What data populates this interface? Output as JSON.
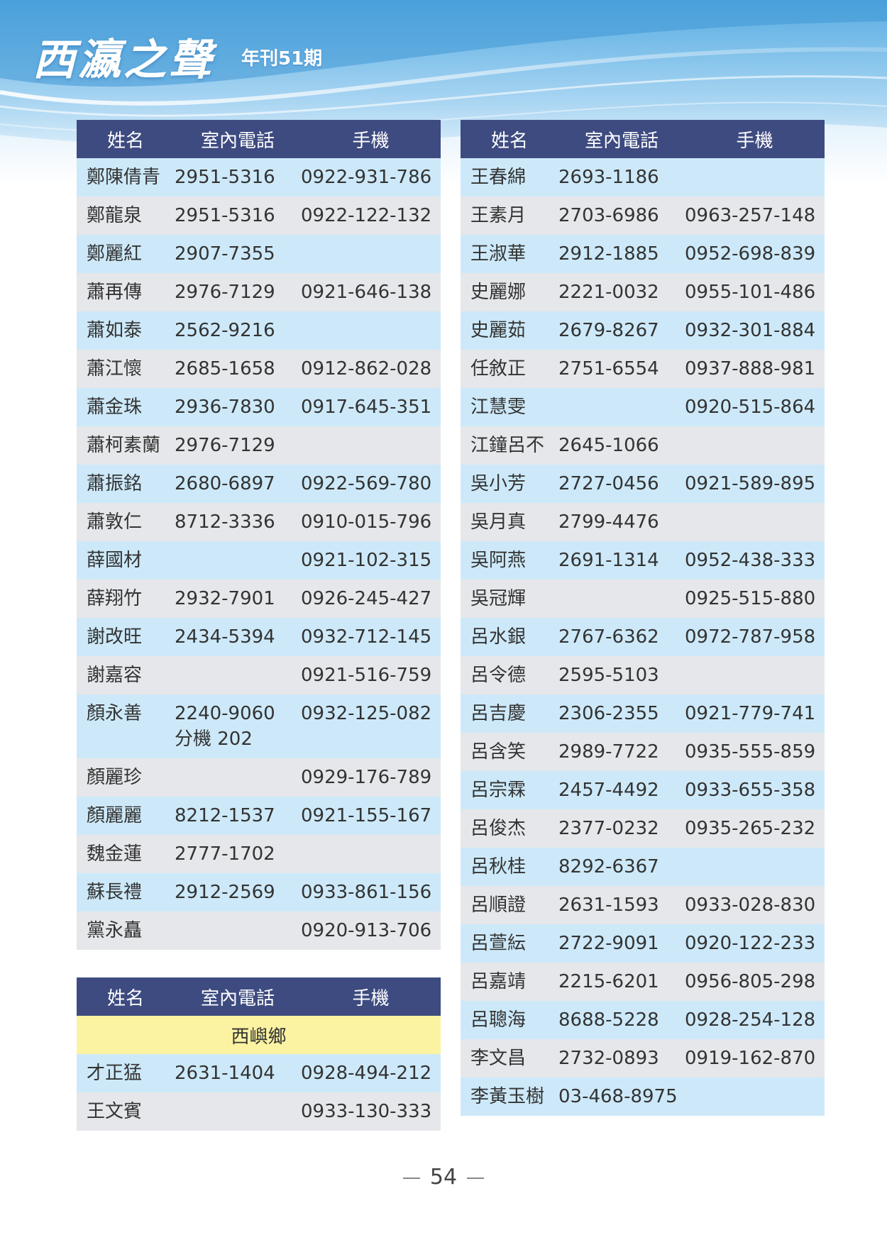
{
  "masthead": {
    "title": "西瀛之聲",
    "issue": "年刊51期"
  },
  "columns": {
    "name": "姓名",
    "home": "室內電話",
    "mobile": "手機"
  },
  "table_left": [
    {
      "name": "鄭陳倩青",
      "home": "2951-5316",
      "mobile": "0922-931-786"
    },
    {
      "name": "鄭龍泉",
      "home": "2951-5316",
      "mobile": "0922-122-132"
    },
    {
      "name": "鄭麗紅",
      "home": "2907-7355",
      "mobile": ""
    },
    {
      "name": "蕭再傳",
      "home": "2976-7129",
      "mobile": "0921-646-138"
    },
    {
      "name": "蕭如泰",
      "home": "2562-9216",
      "mobile": ""
    },
    {
      "name": "蕭江懷",
      "home": "2685-1658",
      "mobile": "0912-862-028"
    },
    {
      "name": "蕭金珠",
      "home": "2936-7830",
      "mobile": "0917-645-351"
    },
    {
      "name": "蕭柯素蘭",
      "home": "2976-7129",
      "mobile": ""
    },
    {
      "name": "蕭振銘",
      "home": "2680-6897",
      "mobile": "0922-569-780"
    },
    {
      "name": "蕭敦仁",
      "home": "8712-3336",
      "mobile": "0910-015-796"
    },
    {
      "name": "薛國材",
      "home": "",
      "mobile": "0921-102-315"
    },
    {
      "name": "薛翔竹",
      "home": "2932-7901",
      "mobile": "0926-245-427"
    },
    {
      "name": "謝改旺",
      "home": "2434-5394",
      "mobile": "0932-712-145"
    },
    {
      "name": "謝嘉容",
      "home": "",
      "mobile": "0921-516-759"
    },
    {
      "name": "顏永善",
      "home": "2240-9060\n分機 202",
      "mobile": "0932-125-082"
    },
    {
      "name": "顏麗珍",
      "home": "",
      "mobile": "0929-176-789"
    },
    {
      "name": "顏麗麗",
      "home": "8212-1537",
      "mobile": "0921-155-167"
    },
    {
      "name": "魏金蓮",
      "home": "2777-1702",
      "mobile": ""
    },
    {
      "name": "蘇長禮",
      "home": "2912-2569",
      "mobile": "0933-861-156"
    },
    {
      "name": "黨永矗",
      "home": "",
      "mobile": "0920-913-706"
    }
  ],
  "table_bottom": {
    "section": "西嶼鄉",
    "rows": [
      {
        "name": "才正猛",
        "home": "2631-1404",
        "mobile": "0928-494-212"
      },
      {
        "name": "王文賓",
        "home": "",
        "mobile": "0933-130-333"
      }
    ]
  },
  "table_right": [
    {
      "name": "王春綿",
      "home": "2693-1186",
      "mobile": ""
    },
    {
      "name": "王素月",
      "home": "2703-6986",
      "mobile": "0963-257-148"
    },
    {
      "name": "王淑華",
      "home": "2912-1885",
      "mobile": "0952-698-839"
    },
    {
      "name": "史麗娜",
      "home": "2221-0032",
      "mobile": "0955-101-486"
    },
    {
      "name": "史麗茹",
      "home": "2679-8267",
      "mobile": "0932-301-884"
    },
    {
      "name": "任敘正",
      "home": "2751-6554",
      "mobile": "0937-888-981"
    },
    {
      "name": "江慧雯",
      "home": "",
      "mobile": "0920-515-864"
    },
    {
      "name": "江鐘呂不",
      "home": "2645-1066",
      "mobile": ""
    },
    {
      "name": "吳小芳",
      "home": "2727-0456",
      "mobile": "0921-589-895"
    },
    {
      "name": "吳月真",
      "home": "2799-4476",
      "mobile": ""
    },
    {
      "name": "吳阿燕",
      "home": "2691-1314",
      "mobile": "0952-438-333"
    },
    {
      "name": "吳冠輝",
      "home": "",
      "mobile": "0925-515-880"
    },
    {
      "name": "呂水銀",
      "home": "2767-6362",
      "mobile": "0972-787-958"
    },
    {
      "name": "呂令德",
      "home": "2595-5103",
      "mobile": ""
    },
    {
      "name": "呂吉慶",
      "home": "2306-2355",
      "mobile": "0921-779-741"
    },
    {
      "name": "呂含笑",
      "home": "2989-7722",
      "mobile": "0935-555-859"
    },
    {
      "name": "呂宗霖",
      "home": "2457-4492",
      "mobile": "0933-655-358"
    },
    {
      "name": "呂俊杰",
      "home": "2377-0232",
      "mobile": "0935-265-232"
    },
    {
      "name": "呂秋桂",
      "home": "8292-6367",
      "mobile": ""
    },
    {
      "name": "呂順證",
      "home": "2631-1593",
      "mobile": "0933-028-830"
    },
    {
      "name": "呂萱紜",
      "home": "2722-9091",
      "mobile": "0920-122-233"
    },
    {
      "name": "呂嘉靖",
      "home": "2215-6201",
      "mobile": "0956-805-298"
    },
    {
      "name": "呂聰海",
      "home": "8688-5228",
      "mobile": "0928-254-128"
    },
    {
      "name": "李文昌",
      "home": "2732-0893",
      "mobile": "0919-162-870"
    },
    {
      "name": "李黃玉樹",
      "home": "03-468-8975",
      "mobile": ""
    }
  ],
  "footer": {
    "page_number": "54"
  },
  "colors": {
    "header_row": "#3d4b80",
    "row_light_blue": "#cde9f9",
    "row_gray": "#e6e7ea",
    "section_yellow": "#fbf3a2",
    "banner_blue": "#4fa8e0"
  }
}
